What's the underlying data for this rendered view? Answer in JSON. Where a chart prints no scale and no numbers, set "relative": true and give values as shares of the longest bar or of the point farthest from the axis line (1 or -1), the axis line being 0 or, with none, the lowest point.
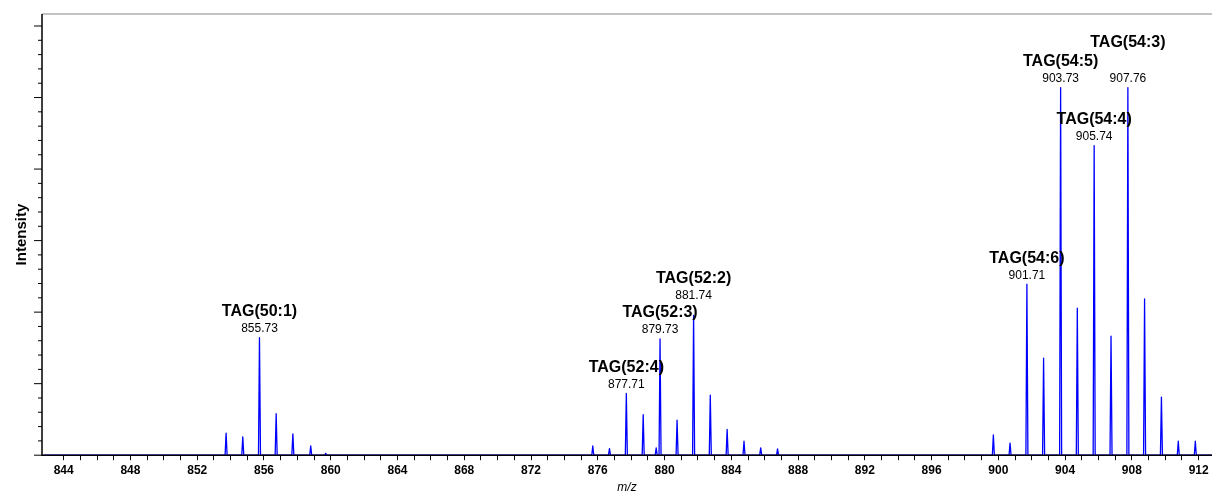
{
  "chart_data": {
    "type": "line",
    "relative": true,
    "ylabel": "Intensity",
    "xlabel": "m/z",
    "xlim": [
      842.7,
      912.8
    ],
    "xticks": [
      844,
      {
        "value": 845,
        "label": null
      },
      {
        "value": 846,
        "label": null
      },
      {
        "value": 847,
        "label": null
      },
      848,
      {
        "value": 849,
        "label": null
      },
      {
        "value": 850,
        "label": null
      },
      {
        "value": 851,
        "label": null
      },
      852,
      {
        "value": 853,
        "label": null
      },
      {
        "value": 854,
        "label": null
      },
      {
        "value": 855,
        "label": null
      },
      856,
      {
        "value": 857,
        "label": null
      },
      {
        "value": 858,
        "label": null
      },
      {
        "value": 859,
        "label": null
      },
      860,
      {
        "value": 861,
        "label": null
      },
      {
        "value": 862,
        "label": null
      },
      {
        "value": 863,
        "label": null
      },
      864,
      {
        "value": 865,
        "label": null
      },
      {
        "value": 866,
        "label": null
      },
      {
        "value": 867,
        "label": null
      },
      868,
      {
        "value": 869,
        "label": null
      },
      {
        "value": 870,
        "label": null
      },
      {
        "value": 871,
        "label": null
      },
      872,
      {
        "value": 873,
        "label": null
      },
      {
        "value": 874,
        "label": null
      },
      {
        "value": 875,
        "label": null
      },
      876,
      {
        "value": 877,
        "label": null
      },
      {
        "value": 878,
        "label": null
      },
      {
        "value": 879,
        "label": null
      },
      880,
      {
        "value": 881,
        "label": null
      },
      {
        "value": 882,
        "label": null
      },
      {
        "value": 883,
        "label": null
      },
      884,
      {
        "value": 885,
        "label": null
      },
      {
        "value": 886,
        "label": null
      },
      {
        "value": 887,
        "label": null
      },
      888,
      {
        "value": 889,
        "label": null
      },
      {
        "value": 890,
        "label": null
      },
      {
        "value": 891,
        "label": null
      },
      892,
      {
        "value": 893,
        "label": null
      },
      {
        "value": 894,
        "label": null
      },
      {
        "value": 895,
        "label": null
      },
      896,
      {
        "value": 897,
        "label": null
      },
      {
        "value": 898,
        "label": null
      },
      {
        "value": 899,
        "label": null
      },
      900,
      {
        "value": 901,
        "label": null
      },
      {
        "value": 902,
        "label": null
      },
      {
        "value": 903,
        "label": null
      },
      904,
      {
        "value": 905,
        "label": null
      },
      {
        "value": 906,
        "label": null
      },
      {
        "value": 907,
        "label": null
      },
      908,
      {
        "value": 909,
        "label": null
      },
      {
        "value": 910,
        "label": null
      },
      {
        "value": 911,
        "label": null
      },
      912
    ],
    "series": [
      {
        "color": "#0000ff",
        "x": [
          842.8,
          853.67,
          853.73,
          853.79,
          854.67,
          854.73,
          854.79,
          855.67,
          855.73,
          855.79,
          856.67,
          856.73,
          856.79,
          857.67,
          857.73,
          857.79,
          858.74,
          858.8,
          858.86,
          859.64,
          859.7,
          859.76,
          875.64,
          875.7,
          875.76,
          876.64,
          876.7,
          876.76,
          877.65,
          877.71,
          877.77,
          878.66,
          878.72,
          878.78,
          879.44,
          879.5,
          879.56,
          879.67,
          879.73,
          879.79,
          880.69,
          880.75,
          880.81,
          881.68,
          881.74,
          881.8,
          882.68,
          882.74,
          882.8,
          883.69,
          883.75,
          883.81,
          884.7,
          884.76,
          884.82,
          885.7,
          885.76,
          885.82,
          886.71,
          886.77,
          886.83,
          899.64,
          899.7,
          899.76,
          900.64,
          900.7,
          900.76,
          901.65,
          901.71,
          901.77,
          902.65,
          902.71,
          902.77,
          903.67,
          903.73,
          903.79,
          904.67,
          904.73,
          904.79,
          905.68,
          905.74,
          905.8,
          906.69,
          906.75,
          906.81,
          907.7,
          907.76,
          907.82,
          908.7,
          908.76,
          908.82,
          909.71,
          909.77,
          909.83,
          910.72,
          910.78,
          910.84,
          911.74,
          911.8,
          911.86,
          912.8
        ],
        "values": [
          0,
          0,
          0.06,
          0,
          0,
          0.05,
          0,
          0,
          0.32,
          0,
          0,
          0.113,
          0,
          0,
          0.058,
          0,
          0,
          0.025,
          0,
          0,
          0.005,
          0,
          0,
          0.025,
          0,
          0,
          0.018,
          0,
          0,
          0.168,
          0,
          0,
          0.11,
          0,
          0,
          0.02,
          0,
          0,
          0.316,
          0,
          0,
          0.095,
          0,
          0,
          0.38,
          0,
          0,
          0.163,
          0,
          0,
          0.07,
          0,
          0,
          0.038,
          0,
          0,
          0.02,
          0,
          0,
          0.017,
          0,
          0,
          0.055,
          0,
          0,
          0.033,
          0,
          0,
          0.465,
          0,
          0,
          0.264,
          0,
          0,
          1.0,
          0,
          0,
          0.4,
          0,
          0,
          0.842,
          0,
          0,
          0.324,
          0,
          0,
          1.0,
          0,
          0,
          0.425,
          0,
          0,
          0.158,
          0,
          0,
          0.038,
          0,
          0,
          0.038,
          0,
          0
        ]
      }
    ],
    "annotations": [
      {
        "text": "855.73",
        "x": 855.73,
        "y": 0.32
      },
      {
        "text": "TAG(50:1)",
        "x": 855.73,
        "y": 0.32
      },
      {
        "text": "877.71",
        "x": 877.71,
        "y": 0.168
      },
      {
        "text": "TAG(52:4)",
        "x": 877.71,
        "y": 0.168
      },
      {
        "text": "879.73",
        "x": 879.73,
        "y": 0.316
      },
      {
        "text": "TAG(52:3)",
        "x": 879.73,
        "y": 0.316
      },
      {
        "text": "881.74",
        "x": 881.74,
        "y": 0.38
      },
      {
        "text": "TAG(52:2)",
        "x": 881.74,
        "y": 0.38
      },
      {
        "text": "901.71",
        "x": 901.71,
        "y": 0.465
      },
      {
        "text": "TAG(54:6)",
        "x": 901.71,
        "y": 0.465
      },
      {
        "text": "903.73",
        "x": 903.73,
        "y": 1.0
      },
      {
        "text": "TAG(54:5)",
        "x": 903.73,
        "y": 1.0
      },
      {
        "text": "905.74",
        "x": 905.74,
        "y": 0.842
      },
      {
        "text": "TAG(54:4)",
        "x": 905.74,
        "y": 0.842
      },
      {
        "text": "907.76",
        "x": 907.76,
        "y": 1.0
      },
      {
        "text": "TAG(54:3)",
        "x": 907.76,
        "y": 1.0
      }
    ]
  }
}
